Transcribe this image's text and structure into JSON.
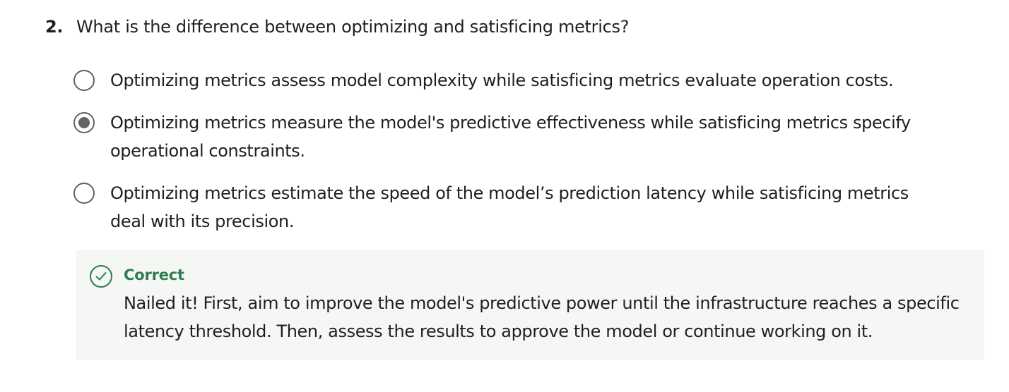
{
  "question": {
    "number": "2.",
    "text": "What is the difference between optimizing and satisficing metrics?"
  },
  "options": [
    {
      "text": "Optimizing metrics assess model complexity while satisficing metrics evaluate operation costs.",
      "selected": false
    },
    {
      "text": "Optimizing metrics measure the model's predictive effectiveness while satisficing metrics specify operational constraints.",
      "selected": true
    },
    {
      "text": "Optimizing metrics estimate the speed of the model’s prediction latency while satisficing metrics deal with its precision.",
      "selected": false
    }
  ],
  "feedback": {
    "status": "Correct",
    "icon": "check-circle-icon",
    "message": "Nailed it! First, aim to improve the model's predictive power until the infrastructure reaches a specific latency threshold. Then,  assess the results to approve the model or continue working on it."
  },
  "colors": {
    "correct_green": "#2e7d4f",
    "radio_gray": "#636363",
    "feedback_bg": "#f5f7f5"
  }
}
